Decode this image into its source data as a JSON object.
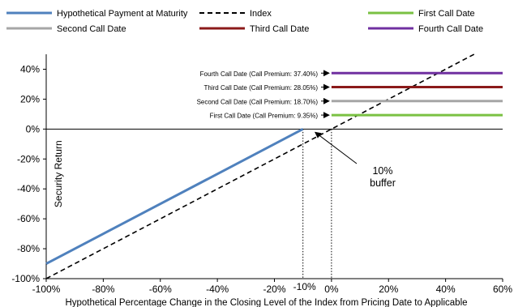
{
  "chart_data": {
    "type": "line",
    "xlabel": "Hypothetical Percentage Change in the Closing Level of the Index from Pricing Date to Applicable",
    "ylabel": "Security Return",
    "xlim": [
      -100,
      60
    ],
    "ylim": [
      -100,
      50
    ],
    "x_ticks": [
      "-100%",
      "-80%",
      "-60%",
      "-40%",
      "-20%",
      "0%",
      "20%",
      "40%",
      "60%"
    ],
    "x_tick_values": [
      -100,
      -80,
      -60,
      -40,
      -20,
      0,
      20,
      40,
      60
    ],
    "extra_x_tick": {
      "label": "-10%",
      "value": -10
    },
    "y_ticks": [
      "-100%",
      "-80%",
      "-60%",
      "-40%",
      "-20%",
      "0%",
      "20%",
      "40%"
    ],
    "y_tick_values": [
      -100,
      -80,
      -60,
      -40,
      -20,
      0,
      20,
      40
    ],
    "grid": false,
    "legend_position": "top",
    "series": [
      {
        "name": "Hypothetical Payment at Maturity",
        "color": "#4f81bd",
        "style": "solid",
        "x": [
          -100,
          -10
        ],
        "y": [
          -90,
          0
        ]
      },
      {
        "name": "Index",
        "color": "#000000",
        "style": "dashed",
        "x": [
          -100,
          50
        ],
        "y": [
          -100,
          50
        ]
      },
      {
        "name": "First Call Date",
        "color": "#7ac143",
        "style": "solid",
        "x": [
          0,
          60
        ],
        "y": [
          9.35,
          9.35
        ],
        "annotation": "First Call Date (Call Premium: 9.35%)"
      },
      {
        "name": "Second Call Date",
        "color": "#a6a6a6",
        "style": "solid",
        "x": [
          0,
          60
        ],
        "y": [
          18.7,
          18.7
        ],
        "annotation": "Second Call Date (Call Premium: 18.70%)"
      },
      {
        "name": "Third Call Date",
        "color": "#8b1a1a",
        "style": "solid",
        "x": [
          0,
          60
        ],
        "y": [
          28.05,
          28.05
        ],
        "annotation": "Third Call Date (Call Premium: 28.05%)"
      },
      {
        "name": "Fourth Call Date",
        "color": "#7030a0",
        "style": "solid",
        "x": [
          0,
          60
        ],
        "y": [
          37.4,
          37.4
        ],
        "annotation": "Fourth Call Date (Call Premium: 37.40%)"
      }
    ],
    "vlines": [
      -10,
      0
    ],
    "callout": {
      "lines": [
        "10%",
        "buffer"
      ],
      "target_x": -6,
      "target_y": 0
    }
  }
}
